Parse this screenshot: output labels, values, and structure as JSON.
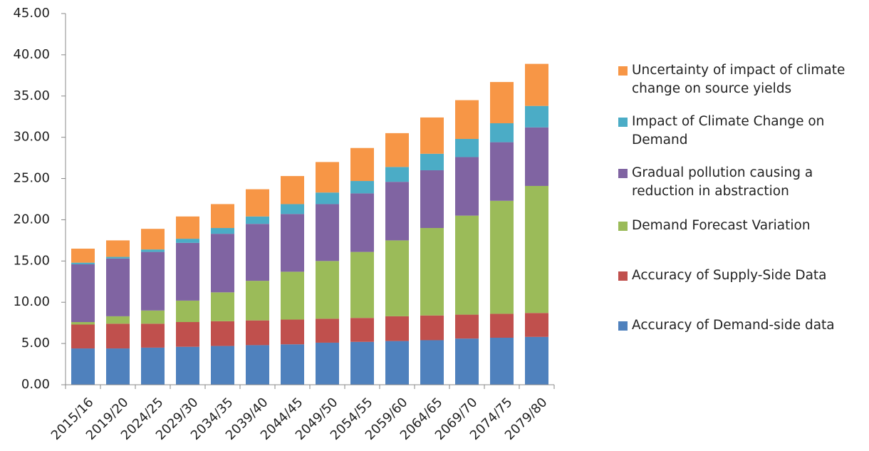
{
  "chart_data": {
    "type": "stacked-bar",
    "categories": [
      "2015/16",
      "2019/20",
      "2024/25",
      "2029/30",
      "2034/35",
      "2039/40",
      "2044/45",
      "2049/50",
      "2054/55",
      "2059/60",
      "2064/65",
      "2069/70",
      "2074/75",
      "2079/80"
    ],
    "series": [
      {
        "name": "Accuracy of Demand-side data",
        "color": "#4f81bd",
        "values": [
          4.4,
          4.4,
          4.5,
          4.6,
          4.7,
          4.8,
          4.9,
          5.1,
          5.2,
          5.3,
          5.4,
          5.6,
          5.7,
          5.8
        ]
      },
      {
        "name": "Accuracy of Supply-Side Data",
        "color": "#c0504d",
        "values": [
          2.9,
          3.0,
          2.9,
          3.0,
          3.0,
          3.0,
          3.0,
          2.9,
          2.9,
          3.0,
          3.0,
          2.9,
          2.9,
          2.9
        ]
      },
      {
        "name": "Demand Forecast Variation",
        "color": "#9bbb59",
        "values": [
          0.3,
          0.9,
          1.6,
          2.6,
          3.5,
          4.8,
          5.8,
          7.0,
          8.0,
          9.2,
          10.6,
          12.0,
          13.7,
          15.4
        ]
      },
      {
        "name": "Gradual pollution causing a reduction in abstraction",
        "color": "#8064a2",
        "values": [
          7.0,
          7.0,
          7.1,
          7.0,
          7.1,
          6.9,
          7.0,
          6.9,
          7.1,
          7.1,
          7.0,
          7.1,
          7.1,
          7.1
        ]
      },
      {
        "name": "Impact of Climate Change on Demand",
        "color": "#4bacc6",
        "values": [
          0.2,
          0.2,
          0.3,
          0.5,
          0.7,
          0.9,
          1.2,
          1.4,
          1.5,
          1.8,
          2.0,
          2.2,
          2.3,
          2.6
        ]
      },
      {
        "name": "Uncertainty of impact of climate change on source yields",
        "color": "#f79646",
        "values": [
          1.7,
          2.0,
          2.5,
          2.7,
          2.9,
          3.3,
          3.4,
          3.7,
          4.0,
          4.1,
          4.4,
          4.7,
          5.0,
          5.1
        ]
      }
    ],
    "ylim": [
      0,
      45
    ],
    "yticks": [
      {
        "value": 0,
        "label": "0.00"
      },
      {
        "value": 5,
        "label": "5.00"
      },
      {
        "value": 10,
        "label": "10.00"
      },
      {
        "value": 15,
        "label": "15.00"
      },
      {
        "value": 20,
        "label": "20.00"
      },
      {
        "value": 25,
        "label": "25.00"
      },
      {
        "value": 30,
        "label": "30.00"
      },
      {
        "value": 35,
        "label": "35.00"
      },
      {
        "value": 40,
        "label": "40.00"
      },
      {
        "value": 45,
        "label": "45.00"
      }
    ],
    "grid": false,
    "legend": "right"
  }
}
